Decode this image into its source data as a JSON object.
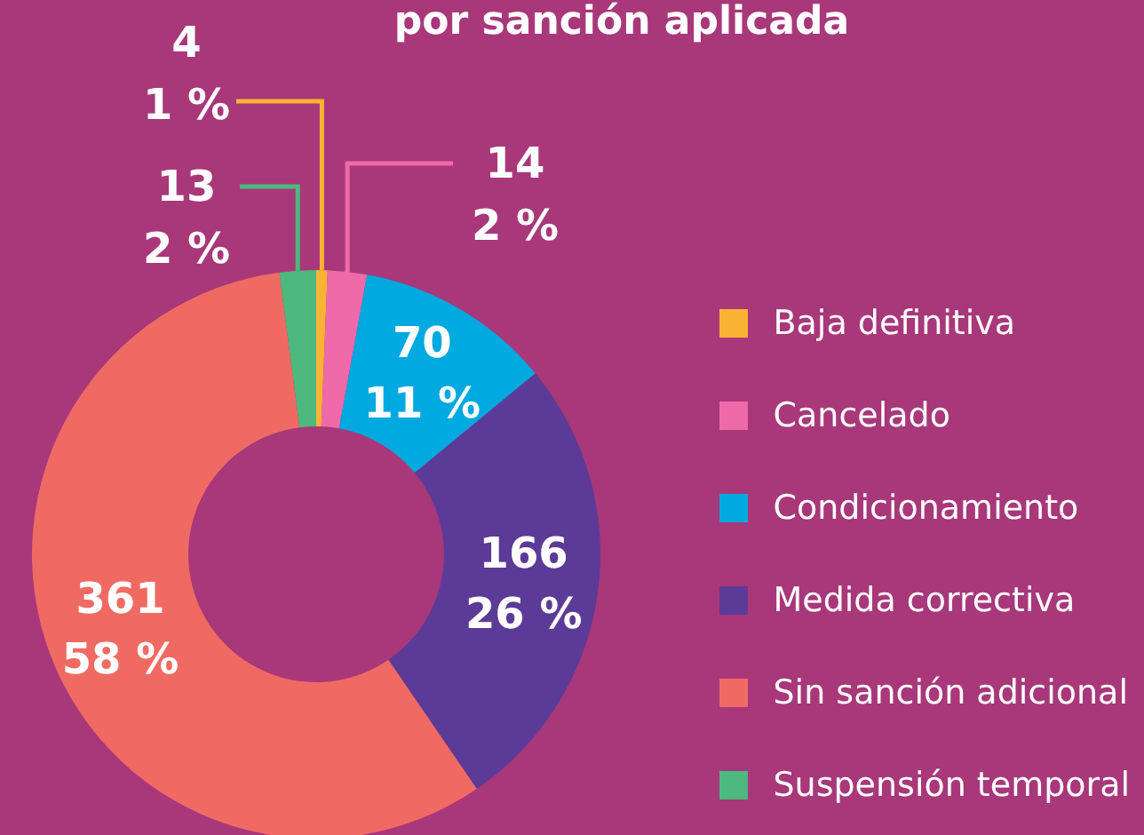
{
  "chart_data": {
    "type": "donut",
    "title": "por sanción aplicada",
    "categories": [
      "Baja definitiva",
      "Cancelado",
      "Condicionamiento",
      "Medida correctiva",
      "Sin sanción adicional",
      "Suspensión temporal"
    ],
    "values": [
      4,
      14,
      70,
      166,
      361,
      13
    ],
    "colors": [
      "#f9b233",
      "#ef6aa9",
      "#00a9e0",
      "#5b3b97",
      "#f06a64",
      "#4cba7e"
    ],
    "value_labels": [
      "4\n1 %",
      "14\n2 %",
      "70\n11 %",
      "166\n26 %",
      "361\n58 %",
      "13\n2 %"
    ],
    "legend": "right"
  }
}
